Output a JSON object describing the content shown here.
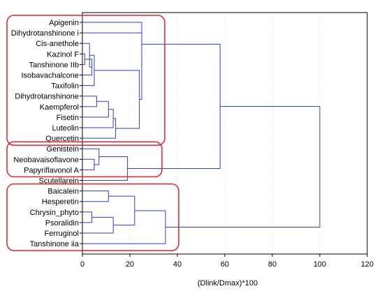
{
  "chart_data": {
    "type": "dendrogram",
    "orientation": "horizontal",
    "xlabel": "(Dlink/Dmax)*100",
    "xlim": [
      0,
      120
    ],
    "xticks": [
      0,
      20,
      40,
      60,
      80,
      100,
      120
    ],
    "grid": true,
    "colors": {
      "link": "#2f3fcf",
      "cluster_box": "#e0242a",
      "frame": "#000000",
      "grid": "#d0d0d0"
    },
    "leaves": [
      "Apigenin",
      "Dihydrotanshinone i",
      "Cis-anethole",
      "Kazinol F",
      "Tanshinone IIb",
      "Isobavachalcone",
      "Taxifolin",
      "Dihydrotanshinone",
      "Kaempferol",
      "Fisetin",
      "Luteolin",
      "Quercetin",
      "Genistein",
      "Neobavaisoflavone",
      "Papyriflavonol A",
      "Scutellarein",
      "Baicalein",
      "Hesperetin",
      "Chrysin_phyto",
      "Psoralidin",
      "Ferruginol",
      "Tanshinone iia"
    ],
    "merges": [
      {
        "a": "Kazinol F",
        "b": "Tanshinone IIb",
        "h": 1
      },
      {
        "a": "c1",
        "b": "Isobavachalcone",
        "h": 4
      },
      {
        "a": "Cis-anethole",
        "b": "c2",
        "h": 3
      },
      {
        "a": "c3",
        "b": "Taxifolin",
        "h": 5
      },
      {
        "a": "Dihydrotanshinone",
        "b": "Kaempferol",
        "h": 6
      },
      {
        "a": "c5",
        "b": "Fisetin",
        "h": 11
      },
      {
        "a": "c6",
        "b": "Luteolin",
        "h": 13
      },
      {
        "a": "c7",
        "b": "Quercetin",
        "h": 14
      },
      {
        "a": "c4",
        "b": "c8",
        "h": 24
      },
      {
        "a": "Dihydrotanshinone i",
        "b": "c9",
        "h": 25
      },
      {
        "a": "Apigenin",
        "b": "c10",
        "h": 25
      },
      {
        "a": "Neobavaisoflavone",
        "b": "Papyriflavonol A",
        "h": 5
      },
      {
        "a": "Genistein",
        "b": "c12",
        "h": 7
      },
      {
        "a": "c13",
        "b": "Scutellarein",
        "h": 19
      },
      {
        "a": "c11",
        "b": "c14",
        "h": 58
      },
      {
        "a": "Baicalein",
        "b": "Hesperetin",
        "h": 11
      },
      {
        "a": "Chrysin_phyto",
        "b": "Psoralidin",
        "h": 4
      },
      {
        "a": "c17",
        "b": "Ferruginol",
        "h": 13
      },
      {
        "a": "c16",
        "b": "c18",
        "h": 22
      },
      {
        "a": "c19",
        "b": "Tanshinone iia",
        "h": 35
      },
      {
        "a": "c15",
        "b": "c20",
        "h": 100
      }
    ],
    "cluster_boxes": [
      {
        "first": "Apigenin",
        "last": "Quercetin"
      },
      {
        "first": "Genistein",
        "last": "Papyriflavonol A"
      },
      {
        "first": "Baicalein",
        "last": "Tanshinone iia"
      }
    ]
  }
}
